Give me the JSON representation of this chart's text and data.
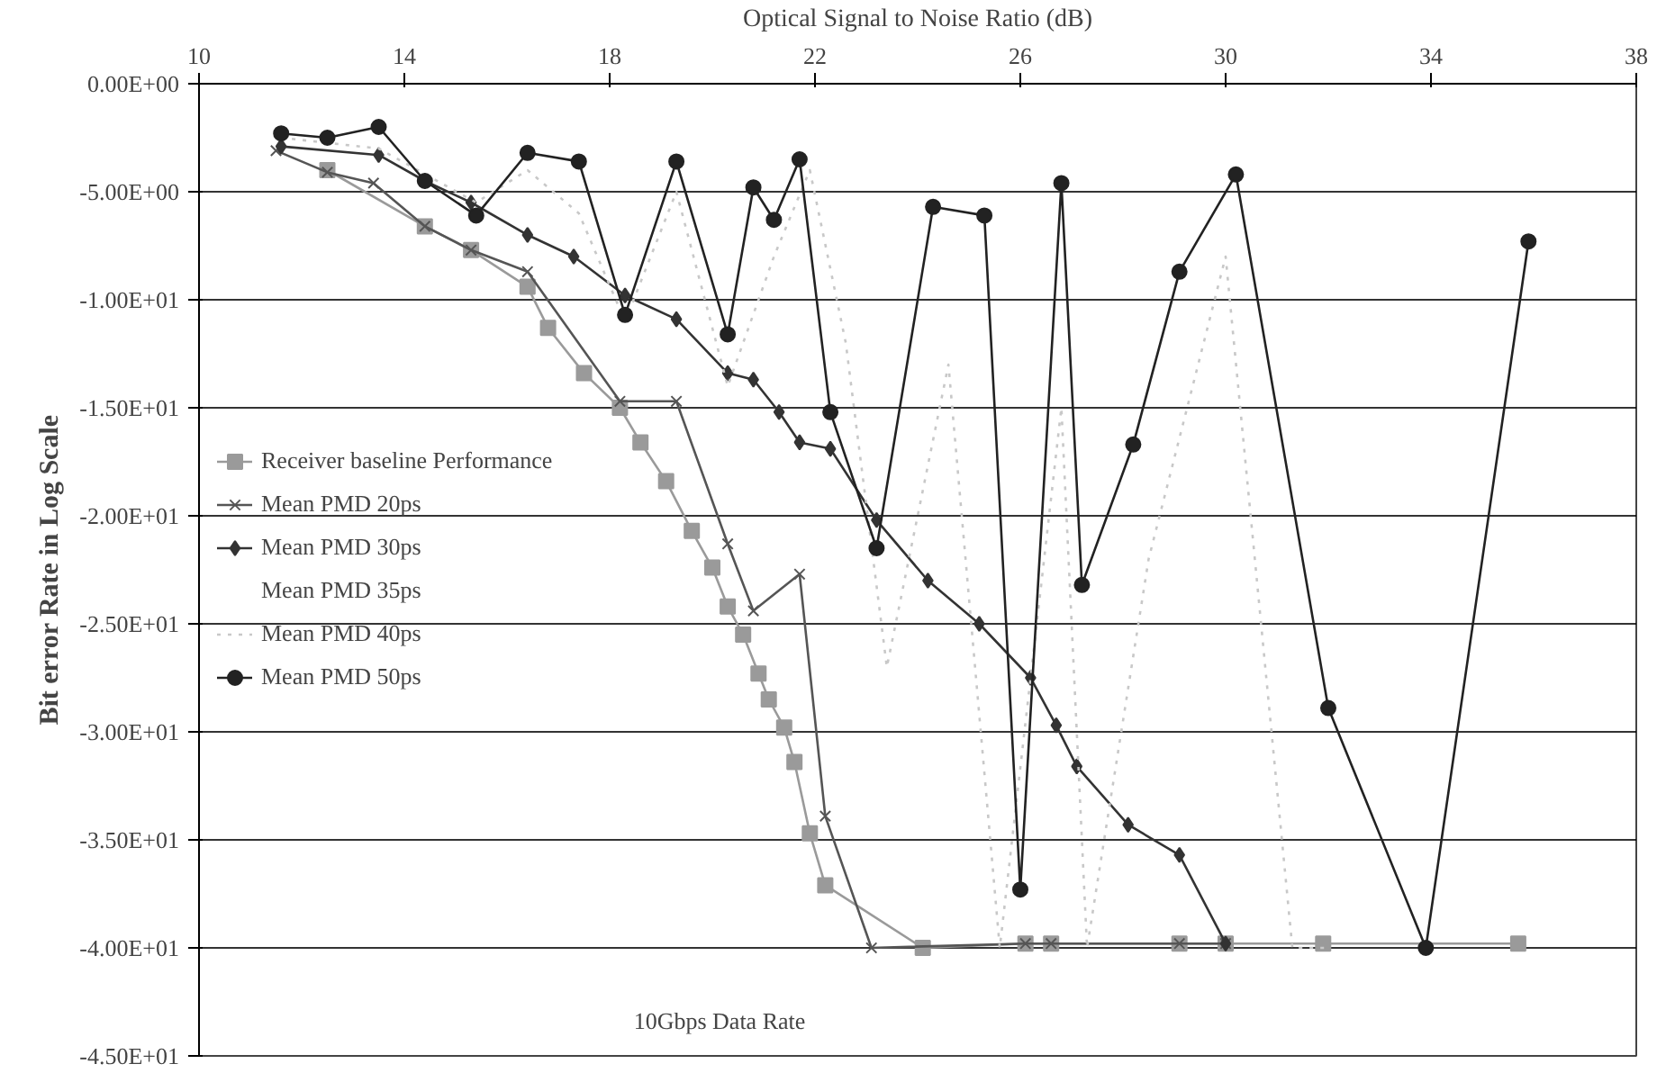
{
  "chart_data": {
    "type": "line",
    "xlabel": "Optical Signal to Noise Ratio (dB)",
    "ylabel": "Bit error Rate in Log Scale",
    "annotations": [
      "10Gbps Data Rate"
    ],
    "xlim": [
      10,
      38
    ],
    "xticks": [
      10,
      14,
      18,
      22,
      26,
      30,
      34,
      38
    ],
    "ylim": [
      -45,
      0
    ],
    "yticks": [
      {
        "value": 0,
        "label": "0.00E+00"
      },
      {
        "value": -5,
        "label": "-5.00E+00"
      },
      {
        "value": -10,
        "label": "-1.00E+01"
      },
      {
        "value": -15,
        "label": "-1.50E+01"
      },
      {
        "value": -20,
        "label": "-2.00E+01"
      },
      {
        "value": -25,
        "label": "-2.50E+01"
      },
      {
        "value": -30,
        "label": "-3.00E+01"
      },
      {
        "value": -35,
        "label": "-3.50E+01"
      },
      {
        "value": -40,
        "label": "-4.00E+01"
      },
      {
        "value": -45,
        "label": "-4.50E+01"
      }
    ],
    "grid": "y",
    "legend": "left",
    "series": [
      {
        "name": "Receiver baseline Performance",
        "color": "#9a9a9a",
        "marker": "square",
        "x": [
          12.5,
          14.4,
          15.3,
          16.4,
          16.8,
          17.5,
          18.2,
          18.6,
          19.1,
          19.6,
          20.0,
          20.3,
          20.6,
          20.9,
          21.1,
          21.4,
          21.6,
          21.9,
          22.2,
          24.1,
          26.1,
          26.6,
          29.1,
          30.0,
          31.9,
          35.7
        ],
        "values": [
          -4.0,
          -6.6,
          -7.7,
          -9.4,
          -11.3,
          -13.4,
          -15.0,
          -16.6,
          -18.4,
          -20.7,
          -22.4,
          -24.2,
          -25.5,
          -27.3,
          -28.5,
          -29.8,
          -31.4,
          -34.7,
          -37.1,
          -40.0,
          -39.8,
          -39.8,
          -39.8,
          -39.8,
          -39.8,
          -39.8
        ]
      },
      {
        "name": "Mean PMD 20ps",
        "color": "#555555",
        "marker": "cross",
        "x": [
          11.5,
          12.5,
          13.4,
          14.4,
          15.3,
          16.4,
          18.2,
          19.3,
          20.3,
          20.8,
          21.7,
          22.2,
          23.1,
          26.1,
          26.6,
          29.1,
          30.0
        ],
        "values": [
          -3.1,
          -4.1,
          -4.6,
          -6.6,
          -7.7,
          -8.7,
          -14.7,
          -14.7,
          -21.3,
          -24.4,
          -22.7,
          -33.9,
          -40.0,
          -39.8,
          -39.8,
          -39.8,
          -39.8
        ]
      },
      {
        "name": "Mean PMD 30ps",
        "color": "#333333",
        "marker": "diamond",
        "x": [
          11.6,
          13.5,
          14.4,
          15.3,
          16.4,
          17.3,
          18.3,
          19.3,
          20.3,
          20.8,
          21.3,
          21.7,
          22.3,
          23.2,
          24.2,
          25.2,
          26.2,
          26.7,
          27.1,
          28.1,
          29.1,
          30.0
        ],
        "values": [
          -2.9,
          -3.3,
          -4.5,
          -5.5,
          -7.0,
          -8.0,
          -9.8,
          -10.9,
          -13.4,
          -13.7,
          -15.2,
          -16.6,
          -16.9,
          -20.2,
          -23.0,
          -25.0,
          -27.5,
          -29.7,
          -31.6,
          -34.3,
          -35.7,
          -39.8
        ]
      },
      {
        "name": "Mean PMD 35ps",
        "marker": "none"
      },
      {
        "name": "Mean PMD 40ps",
        "color": "#c8c8c8",
        "marker": "none",
        "line_style": "dotted",
        "x": [
          11.6,
          13.5,
          15.4,
          16.4,
          17.4,
          18.3,
          19.3,
          20.3,
          21.2,
          21.9,
          22.6,
          23.4,
          24.6,
          25.6,
          26.8,
          27.3,
          28.5,
          30.0,
          31.3,
          32.0
        ],
        "values": [
          -2.5,
          -3.0,
          -5.5,
          -4.0,
          -6.0,
          -11.0,
          -5.0,
          -14.0,
          -8.0,
          -4.0,
          -12.0,
          -27.0,
          -13.0,
          -40.0,
          -15.0,
          -40.0,
          -22.0,
          -8.0,
          -40.0,
          -40.0
        ]
      },
      {
        "name": "Mean PMD 50ps",
        "color": "#222222",
        "marker": "circle",
        "x": [
          11.6,
          12.5,
          13.5,
          14.4,
          15.4,
          16.4,
          17.4,
          18.3,
          19.3,
          20.3,
          20.8,
          21.2,
          21.7,
          22.3,
          23.2,
          24.3,
          25.3,
          26.0,
          26.8,
          27.2,
          28.2,
          29.1,
          30.2,
          32.0,
          33.9,
          35.9
        ],
        "values": [
          -2.3,
          -2.5,
          -2.0,
          -4.5,
          -6.1,
          -3.2,
          -3.6,
          -10.7,
          -3.6,
          -11.6,
          -4.8,
          -6.3,
          -3.5,
          -15.2,
          -21.5,
          -5.7,
          -6.1,
          -37.3,
          -4.6,
          -23.2,
          -16.7,
          -8.7,
          -4.2,
          -28.9,
          -40.0,
          -7.3
        ]
      }
    ]
  }
}
